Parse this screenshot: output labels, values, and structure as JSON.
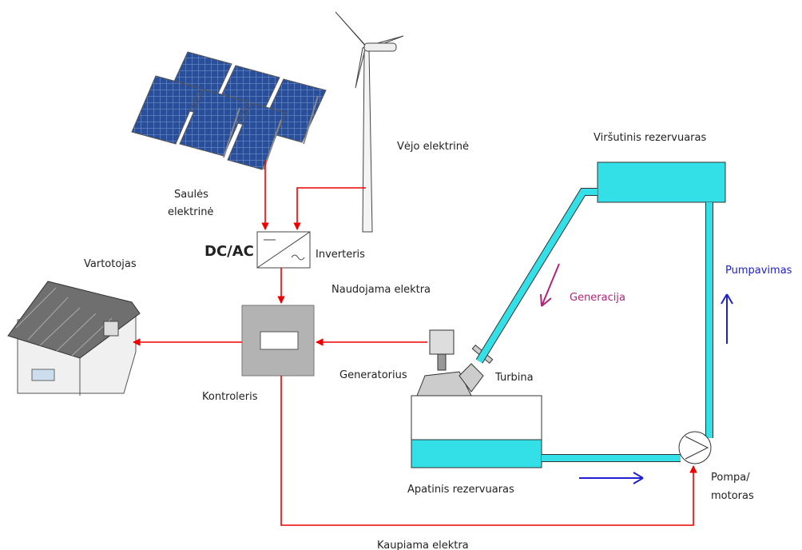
{
  "nodes": [
    {
      "id": "solar",
      "label": [
        "Saulės",
        "elektrinė"
      ]
    },
    {
      "id": "wind",
      "label": [
        "Vėjo elektrinė"
      ]
    },
    {
      "id": "inverter",
      "label": [
        "DC/AC",
        "Inverteris"
      ]
    },
    {
      "id": "consumer",
      "label": [
        "Vartotojas"
      ]
    },
    {
      "id": "controller",
      "label": [
        "Kontroleris"
      ]
    },
    {
      "id": "generator",
      "label": [
        "Generatorius"
      ]
    },
    {
      "id": "turbine",
      "label": [
        "Turbina"
      ]
    },
    {
      "id": "upper",
      "label": [
        "Viršutinis rezervuaras"
      ]
    },
    {
      "id": "lower",
      "label": [
        "Apatinis rezervuaras"
      ]
    },
    {
      "id": "pump",
      "label": [
        "Pompa/",
        "motoras"
      ]
    }
  ],
  "flows": [
    {
      "label": "Naudojama elektra"
    },
    {
      "label": "Kaupiama elektra"
    },
    {
      "label": "Generacija"
    },
    {
      "label": "Pumpavimas"
    }
  ]
}
